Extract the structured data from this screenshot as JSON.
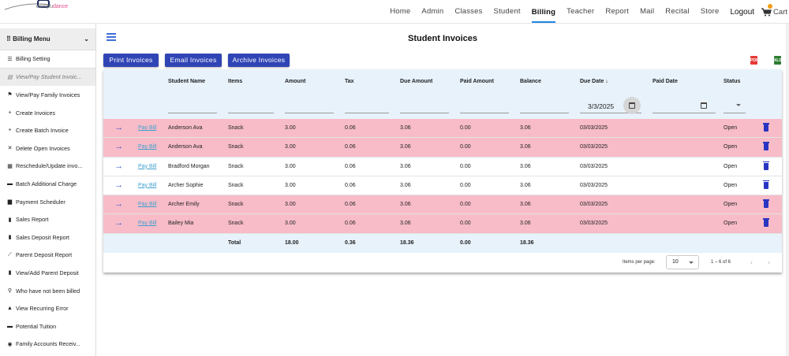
{
  "brand": {
    "logo_prefix": "compu",
    "logo_suffix": "dance"
  },
  "nav": {
    "items": [
      "Home",
      "Admin",
      "Classes",
      "Student",
      "Billing",
      "Teacher",
      "Report",
      "Mail",
      "Recital",
      "Store"
    ],
    "active": "Billing",
    "logout": "Logout",
    "cart": "Cart"
  },
  "sidebar": {
    "header": "Billing Menu",
    "items": [
      {
        "icon": "list-icon",
        "glyph": "☰",
        "label": "Billing Setting"
      },
      {
        "icon": "card-icon",
        "glyph": "▤",
        "label": "View/Pay Student Invoic..."
      },
      {
        "icon": "flag-icon",
        "glyph": "⚑",
        "label": "View/Pay Family Invoices"
      },
      {
        "icon": "plus-icon",
        "glyph": "+",
        "label": "Create Invoices"
      },
      {
        "icon": "plus-icon",
        "glyph": "+",
        "label": "Create Batch Invoice"
      },
      {
        "icon": "close-icon",
        "glyph": "✕",
        "label": "Delete Open Invoices"
      },
      {
        "icon": "calendar-icon",
        "glyph": "▦",
        "label": "Reschedule/Update invo..."
      },
      {
        "icon": "card-icon",
        "glyph": "▬",
        "label": "Batch Additional Charge"
      },
      {
        "icon": "calendar-icon",
        "glyph": "▆",
        "label": "Payment Scheduler"
      },
      {
        "icon": "bar-chart-icon",
        "glyph": "▮",
        "label": "Sales Report"
      },
      {
        "icon": "bar-chart-icon",
        "glyph": "▮",
        "label": "Sales Deposit Report"
      },
      {
        "icon": "line-chart-icon",
        "glyph": "⟋",
        "label": "Parent Deposit Report"
      },
      {
        "icon": "bar-chart-icon",
        "glyph": "▮",
        "label": "View/Add Parent Deposit"
      },
      {
        "icon": "search-icon",
        "glyph": "⚲",
        "label": "Who have not been billed"
      },
      {
        "icon": "warning-icon",
        "glyph": "▲",
        "label": "View Recurring Error"
      },
      {
        "icon": "briefcase-icon",
        "glyph": "▬",
        "label": "Potential Tuition"
      },
      {
        "icon": "globe-icon",
        "glyph": "◉",
        "label": "Family Accounts Receiv..."
      }
    ],
    "active_index": 1
  },
  "page": {
    "title": "Student Invoices",
    "buttons": [
      "Print Invoices",
      "Email Invoices",
      "Archive Invoices"
    ],
    "export_pdf": "PDF",
    "export_xls": "XLS"
  },
  "table": {
    "columns": [
      "Student Name",
      "Items",
      "Amount",
      "Tax",
      "Due Amount",
      "Paid Amount",
      "Balance",
      "Due Date ↓",
      "Paid Date",
      "Status"
    ],
    "filter_due_date": "3/3/2025",
    "pay_label": "Pay Bill",
    "rows": [
      {
        "highlight": true,
        "name": "Anderson Ava",
        "item": "Snack",
        "amount": "3.00",
        "tax": "0.06",
        "due": "3.06",
        "paid": "0.00",
        "balance": "3.06",
        "due_date": "03/03/2025",
        "paid_date": "",
        "status": "Open"
      },
      {
        "highlight": true,
        "name": "Anderson Ava",
        "item": "Snack",
        "amount": "3.00",
        "tax": "0.06",
        "due": "3.06",
        "paid": "0.00",
        "balance": "3.06",
        "due_date": "03/03/2025",
        "paid_date": "",
        "status": "Open"
      },
      {
        "highlight": false,
        "name": "Bradford Morgan",
        "item": "Snack",
        "amount": "3.00",
        "tax": "0.06",
        "due": "3.06",
        "paid": "0.00",
        "balance": "3.06",
        "due_date": "03/03/2025",
        "paid_date": "",
        "status": "Open"
      },
      {
        "highlight": false,
        "name": "Archer Sophie",
        "item": "Snack",
        "amount": "3.00",
        "tax": "0.06",
        "due": "3.06",
        "paid": "0.00",
        "balance": "3.06",
        "due_date": "03/03/2025",
        "paid_date": "",
        "status": "Open"
      },
      {
        "highlight": true,
        "name": "Archer Emily",
        "item": "Snack",
        "amount": "3.00",
        "tax": "0.06",
        "due": "3.06",
        "paid": "0.00",
        "balance": "3.06",
        "due_date": "03/03/2025",
        "paid_date": "",
        "status": "Open"
      },
      {
        "highlight": true,
        "name": "Bailey Mia",
        "item": "Snack",
        "amount": "3.00",
        "tax": "0.06",
        "due": "3.06",
        "paid": "0.00",
        "balance": "3.06",
        "due_date": "03/03/2025",
        "paid_date": "",
        "status": "Open"
      }
    ],
    "total": {
      "label": "Total",
      "amount": "18.00",
      "tax": "0.36",
      "due": "18.36",
      "paid": "0.00",
      "balance": "18.36"
    }
  },
  "pager": {
    "label": "Items per page:",
    "size": "10",
    "range": "1 – 6 of 6"
  },
  "colors": {
    "accent": "#3045b5",
    "highlight_row": "#f7bcc8",
    "header_bg": "#e8f2fb",
    "pdf_red": "#e53935",
    "xls_green": "#2e7d32"
  }
}
